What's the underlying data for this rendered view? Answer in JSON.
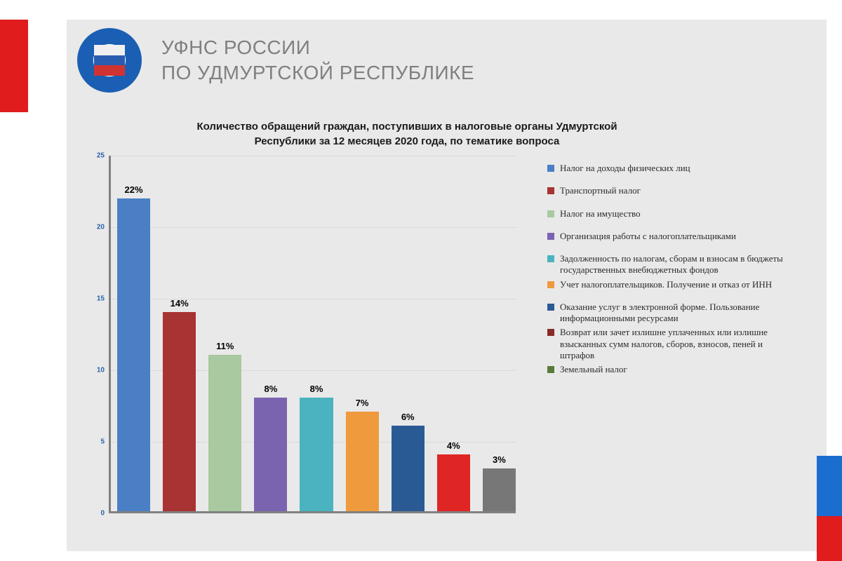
{
  "header": {
    "line1": "УФНС РОССИИ",
    "line2": "ПО УДМУРТСКОЙ РЕСПУБЛИКЕ"
  },
  "chart": {
    "type": "bar",
    "title": "Количество обращений граждан, поступивших в налоговые органы Удмуртской Республики за 12 месяцев 2020 года, по тематике вопроса",
    "ylim": [
      0,
      25
    ],
    "ytick_step": 5,
    "yticks": [
      0,
      5,
      10,
      15,
      20,
      25
    ],
    "axis_color": "#808080",
    "ytick_color": "#2a62a8",
    "background": "#e9e9e9",
    "bars": [
      {
        "value": 22,
        "label": "22%",
        "color": "#4a7fc5"
      },
      {
        "value": 14,
        "label": "14%",
        "color": "#a83333"
      },
      {
        "value": 11,
        "label": "11%",
        "color": "#a9c9a0"
      },
      {
        "value": 8,
        "label": "8%",
        "color": "#7a64b0"
      },
      {
        "value": 8,
        "label": "8%",
        "color": "#4bb3c0"
      },
      {
        "value": 7,
        "label": "7%",
        "color": "#f09a3e"
      },
      {
        "value": 6,
        "label": "6%",
        "color": "#2a5a94"
      },
      {
        "value": 4,
        "label": "4%",
        "color": "#e02525"
      },
      {
        "value": 3,
        "label": "3%",
        "color": "#777777"
      }
    ]
  },
  "legend": {
    "items": [
      {
        "color": "#4a7fc5",
        "label": "Налог на доходы физических лиц"
      },
      {
        "color": "#a83333",
        "label": "Транспортный налог"
      },
      {
        "color": "#a9c9a0",
        "label": "Налог на имущество"
      },
      {
        "color": "#7a64b0",
        "label": "Организация работы с налогоплательщиками"
      },
      {
        "color": "#4bb3c0",
        "label": "Задолженность по налогам, сборам и взносам в бюджеты государственных внебюджетных фондов"
      },
      {
        "color": "#f09a3e",
        "label": "Учет налогоплательщиков. Получение и отказ от ИНН"
      },
      {
        "color": "#2a5a94",
        "label": "Оказание услуг в электронной форме. Пользование информационными ресурсами"
      },
      {
        "color": "#8a2a2a",
        "label": "Возврат или зачет излишне уплаченных или излишне взысканных сумм налогов, сборов, взносов, пеней и штрафов"
      },
      {
        "color": "#5a7a3a",
        "label": "Земельный налог"
      }
    ]
  },
  "accents": {
    "left_red": "#e01c1c",
    "right_blue": "#1c6dd0",
    "right_red": "#e01c1c"
  }
}
